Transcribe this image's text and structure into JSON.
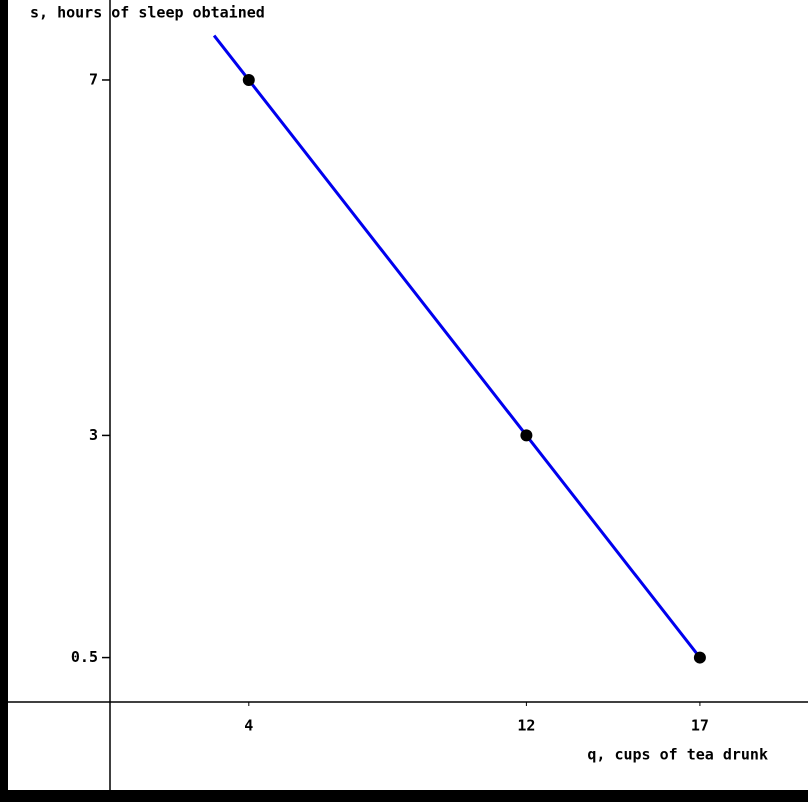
{
  "chart_data": {
    "type": "line",
    "xlabel": "q, cups of tea drunk",
    "ylabel": "s, hours of sleep obtained",
    "xlim": [
      0,
      20
    ],
    "ylim": [
      0,
      7.9
    ],
    "xticks": [
      4,
      12,
      17
    ],
    "yticks": [
      0.5,
      3,
      7
    ],
    "series": [
      {
        "color": "#0000ee",
        "x": [
          3,
          4,
          12,
          17
        ],
        "values": [
          7.5,
          7,
          3,
          0.5
        ]
      }
    ],
    "points": {
      "color": "#000000",
      "x": [
        4,
        12,
        17
      ],
      "values": [
        7,
        3,
        0.5
      ]
    }
  }
}
